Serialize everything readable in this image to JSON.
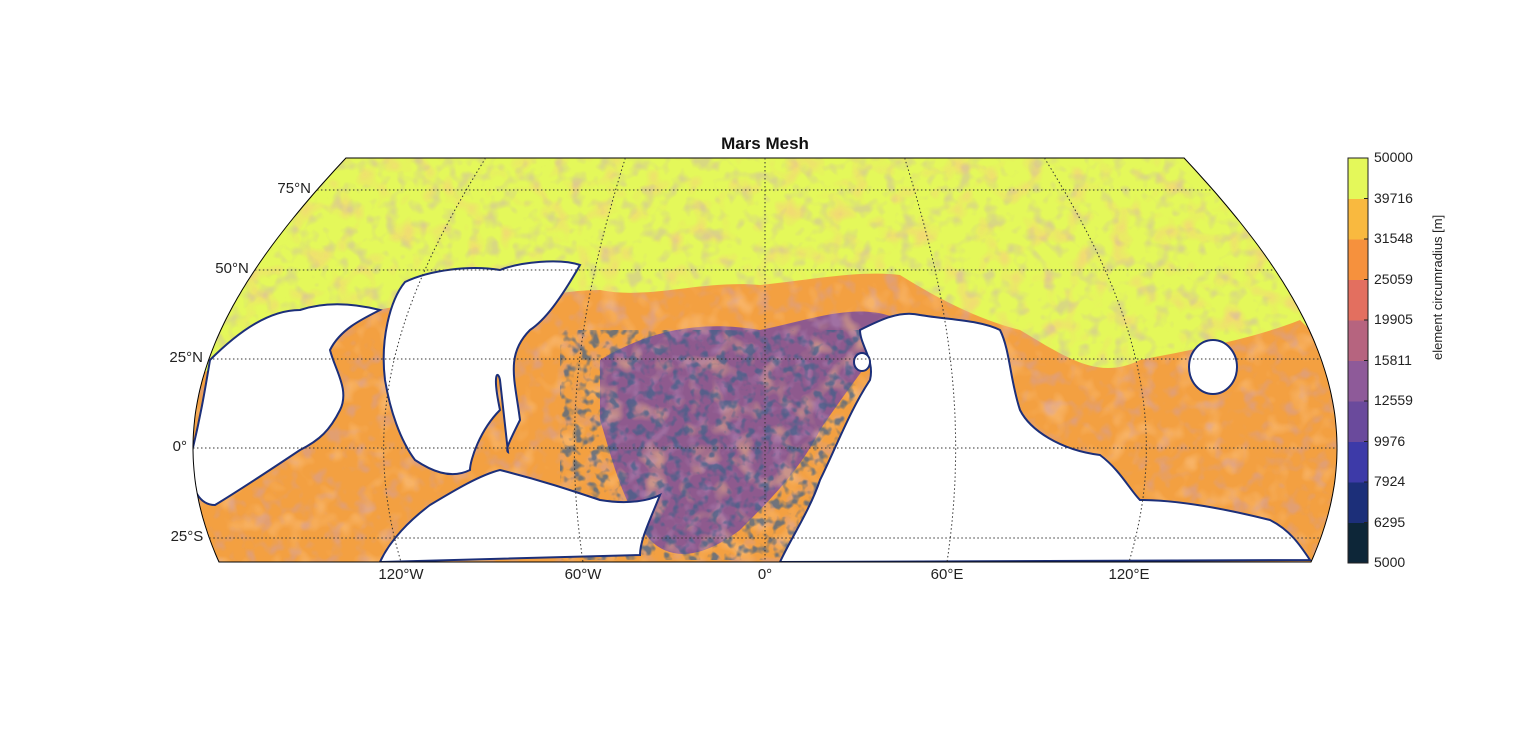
{
  "title": "Mars Mesh",
  "map": {
    "projection": "Robinson",
    "latitude_range": [
      -32,
      82
    ],
    "longitude_range": [
      -180,
      180
    ],
    "lat_labels": [
      "75°N",
      "50°N",
      "25°N",
      "0°",
      "25°S"
    ],
    "lon_labels": [
      "120°W",
      "60°W",
      "0°",
      "60°E",
      "120°E"
    ],
    "graticule": "dotted",
    "fill_description": "element size field with white holes (unmeshed lowlands)"
  },
  "colorbar": {
    "label": "element circumradius [m]",
    "ticks": [
      "50000",
      "39716",
      "31548",
      "25059",
      "19905",
      "15811",
      "12559",
      "9976",
      "7924",
      "6295",
      "5000"
    ],
    "colors": [
      "#0d2638",
      "#1c2f79",
      "#3d3aa8",
      "#6a4a9c",
      "#8e5a99",
      "#b6647f",
      "#e36f5f",
      "#f6913d",
      "#f9b93f",
      "#e4f85a"
    ]
  },
  "colors": {
    "background": "#ffffff",
    "highland": "#e4f85a",
    "frame": "#000000",
    "grid": "#333333"
  }
}
